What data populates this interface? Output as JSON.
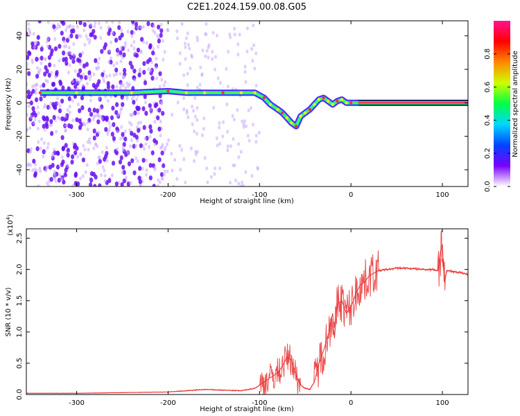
{
  "title": "C2E1.2024.159.00.08.G05",
  "colors": {
    "snr_line": "#e83030",
    "spectrum_peak": "#ff2a55",
    "colorbar_top": "#ff1493",
    "background": "#ffffff"
  },
  "chart_data": [
    {
      "type": "heatmap",
      "xlabel": "Height of straight line (km)",
      "ylabel": "Frequency (Hz)",
      "xlim": [
        -355,
        128
      ],
      "ylim": [
        -50,
        49
      ],
      "xticks": [
        -300,
        -200,
        -100,
        0,
        100
      ],
      "yticks": [
        -40,
        -20,
        0,
        20,
        40
      ],
      "colorbar": {
        "label": "Normalized spectral amplitude",
        "range": [
          0,
          1
        ],
        "ticks": [
          "0.0",
          "0.2",
          "0.4",
          "0.6",
          "0.8"
        ],
        "colormap": [
          "#ffffff",
          "#7a00ff",
          "#0044ff",
          "#00d8ff",
          "#00ff44",
          "#ccff00",
          "#ff8800",
          "#ff0000",
          "#ff1493"
        ]
      },
      "ridge_x": [
        -340,
        -300,
        -240,
        -200,
        -180,
        -160,
        -140,
        -120,
        -105,
        -95,
        -88,
        -80,
        -75,
        -70,
        -65,
        -60,
        -55,
        -50,
        -45,
        -40,
        -35,
        -30,
        -25,
        -20,
        -15,
        -10,
        -5,
        0,
        10,
        50,
        100,
        128
      ],
      "ridge_freq": [
        6,
        6,
        6,
        7,
        6,
        6,
        6,
        6,
        6,
        3,
        -1,
        -4,
        -6,
        -9,
        -12,
        -14,
        -8,
        -6,
        -4,
        -1,
        2,
        3,
        1,
        -1,
        1,
        2,
        0,
        0,
        0,
        0,
        0,
        0
      ]
    },
    {
      "type": "line",
      "xlabel": "Height of straight line (km)",
      "ylabel": "SNR (10 * v/v)",
      "y_scale_label": "(x10",
      "y_scale_exponent": "4",
      "xlim": [
        -355,
        128
      ],
      "ylim": [
        0,
        2.65
      ],
      "xticks": [
        -300,
        -200,
        -100,
        0,
        100
      ],
      "yticks": [
        "0.0",
        "0.5",
        "1.0",
        "1.5",
        "2.0",
        "2.5"
      ],
      "x": [
        -355,
        -300,
        -250,
        -200,
        -180,
        -160,
        -140,
        -120,
        -105,
        -100,
        -90,
        -80,
        -75,
        -70,
        -65,
        -60,
        -55,
        -50,
        -45,
        -40,
        -35,
        -30,
        -25,
        -20,
        -18,
        -15,
        -10,
        -5,
        0,
        5,
        10,
        15,
        20,
        30,
        40,
        50,
        60,
        70,
        80,
        90,
        95,
        98,
        100,
        102,
        105,
        110,
        120,
        128
      ],
      "y": [
        0.02,
        0.02,
        0.03,
        0.04,
        0.06,
        0.08,
        0.07,
        0.06,
        0.1,
        0.15,
        0.25,
        0.35,
        0.45,
        0.6,
        0.55,
        0.3,
        0.15,
        0.1,
        0.08,
        0.2,
        0.5,
        0.7,
        0.95,
        1.3,
        0.9,
        1.45,
        1.5,
        1.3,
        1.4,
        1.6,
        1.75,
        1.8,
        1.9,
        1.98,
        2.0,
        2.02,
        2.02,
        2.01,
        2.0,
        2.0,
        1.98,
        2.3,
        2.4,
        1.8,
        1.98,
        1.97,
        1.95,
        1.92
      ]
    }
  ]
}
